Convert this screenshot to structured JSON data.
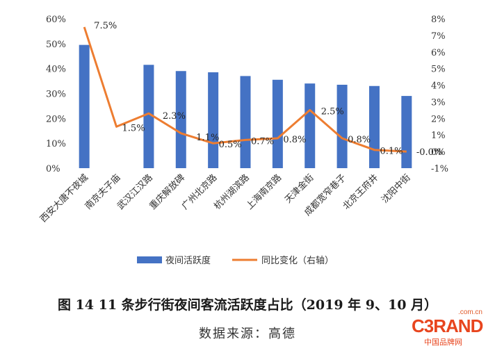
{
  "chart_data": {
    "type": "bar",
    "categories": [
      "西安大唐不夜城",
      "南京夫子庙",
      "武汉江汉路",
      "重庆解放碑",
      "广州北京路",
      "杭州湖滨路",
      "上海南京路",
      "天津金街",
      "成都宽窄巷子",
      "北京王府井",
      "沈阳中街"
    ],
    "series": [
      {
        "name": "夜间活跃度",
        "type": "bar",
        "axis": "left",
        "color": "#4472c4",
        "values": [
          49.5,
          0,
          41.5,
          39,
          38.5,
          37,
          35.5,
          34,
          33.5,
          33,
          29
        ]
      },
      {
        "name": "同比变化（右轴）",
        "type": "line",
        "axis": "right",
        "color": "#ed7d31",
        "values": [
          7.5,
          1.5,
          2.3,
          1.1,
          0.5,
          0.7,
          0.8,
          2.5,
          0.8,
          0.1,
          -0.0
        ]
      }
    ],
    "data_labels": [
      "7.5%",
      "1.5%",
      "2.3%",
      "1.1%",
      "0.5%",
      "0.7%",
      "0.8%",
      "2.5%",
      "0.8%",
      "0.1%",
      "-0.0%"
    ],
    "y_left": {
      "min": 0,
      "max": 60,
      "step": 10,
      "ticks": [
        "0%",
        "10%",
        "20%",
        "30%",
        "40%",
        "50%",
        "60%"
      ]
    },
    "y_right": {
      "min": -1,
      "max": 8,
      "step": 1,
      "ticks": [
        "-1%",
        "0%",
        "1%",
        "2%",
        "3%",
        "4%",
        "5%",
        "6%",
        "7%",
        "8%"
      ]
    },
    "grid": false,
    "legend_position": "bottom"
  },
  "caption": "图 14 11 条步行街夜间客流活跃度占比（2019 年 9、10 月）",
  "source": "数据来源：高德",
  "logo": {
    "domain": ".com.cn",
    "brand": "C3RAND",
    "brand_cn": "中国品牌网"
  }
}
